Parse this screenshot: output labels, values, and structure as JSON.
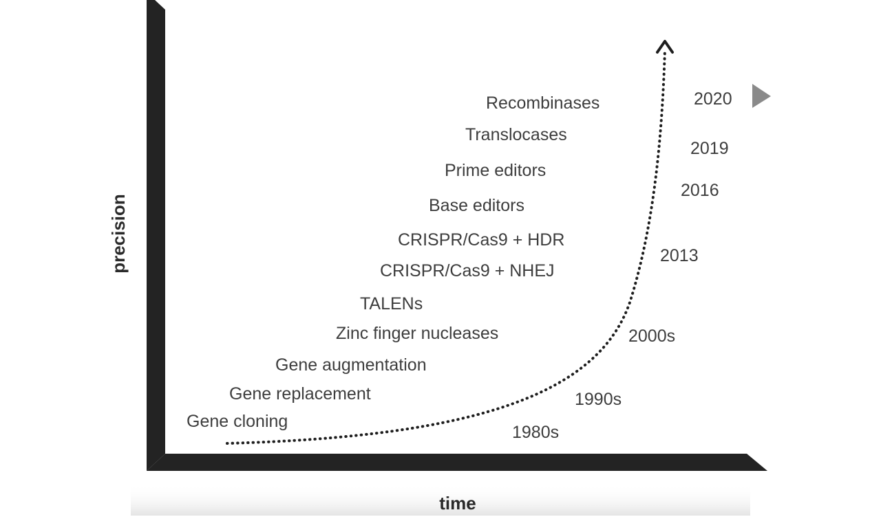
{
  "axes": {
    "y_label": "precision",
    "x_label": "time"
  },
  "technologies": [
    "Gene cloning",
    "Gene replacement",
    "Gene augmentation",
    "Zinc finger nucleases",
    "TALENs",
    "CRISPR/Cas9 + NHEJ",
    "CRISPR/Cas9 + HDR",
    "Base editors",
    "Prime editors",
    "Translocases",
    "Recombinases"
  ],
  "years": [
    "1980s",
    "1990s",
    "2000s",
    "2013",
    "2016",
    "2019",
    "2020"
  ]
}
